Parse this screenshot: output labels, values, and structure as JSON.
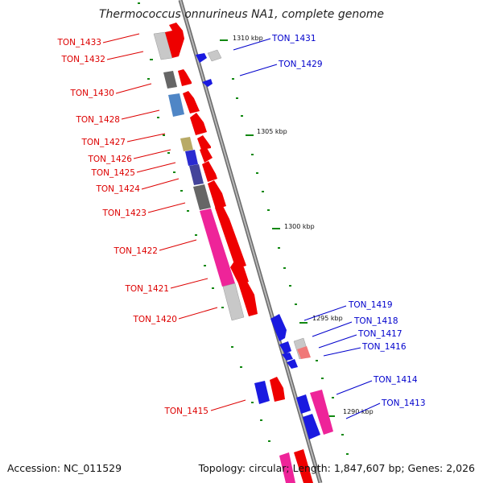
{
  "title": "Thermococcus onnurineus NA1, complete genome",
  "footer": {
    "accession": "Accession: NC_011529",
    "summary": "Topology: circular; Length: 1,847,607 bp; Genes: 2,026"
  },
  "colors": {
    "forward_label": "#dd0000",
    "reverse_label": "#0000cc",
    "backbone": "#888888",
    "tick": "#118811"
  },
  "kbp_marks": [
    {
      "label": "1310 kbp",
      "kbp": 1310
    },
    {
      "label": "1305 kbp",
      "kbp": 1305
    },
    {
      "label": "1300 kbp",
      "kbp": 1300
    },
    {
      "label": "1295 kbp",
      "kbp": 1295
    },
    {
      "label": "1290 kbp",
      "kbp": 1290
    }
  ],
  "gene_labels_forward": [
    "TON_1433",
    "TON_1432",
    "TON_1430",
    "TON_1428",
    "TON_1427",
    "TON_1426",
    "TON_1425",
    "TON_1424",
    "TON_1423",
    "TON_1422",
    "TON_1421",
    "TON_1420",
    "TON_1415"
  ],
  "gene_labels_reverse": [
    "TON_1431",
    "TON_1429",
    "TON_1419",
    "TON_1418",
    "TON_1417",
    "TON_1416",
    "TON_1414",
    "TON_1413"
  ]
}
